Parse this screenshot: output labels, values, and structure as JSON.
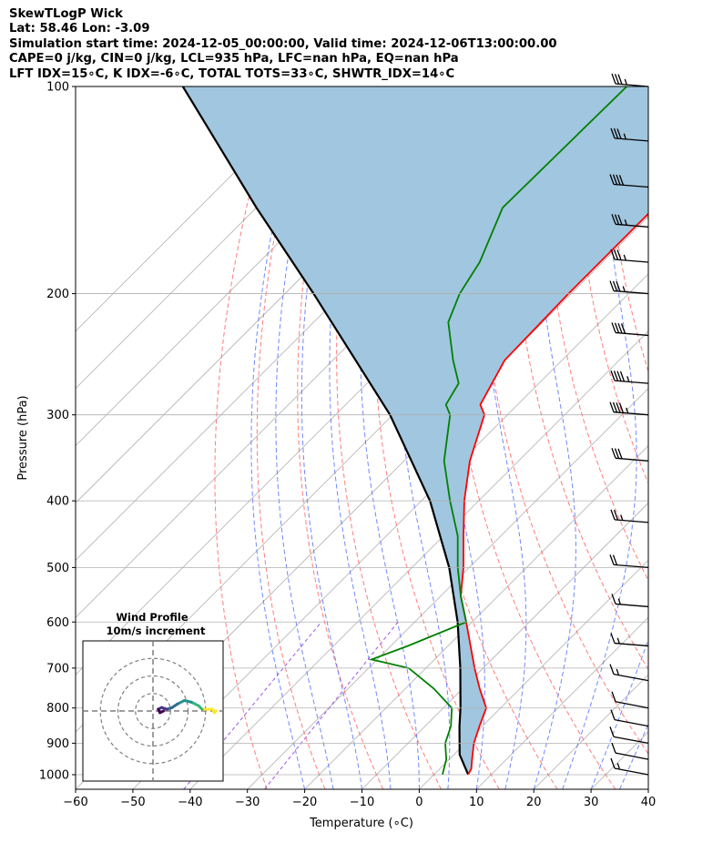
{
  "header": {
    "line1": "SkewTLogP Wick",
    "line2": "Lat: 58.46   Lon: -3.09",
    "line3": "Simulation start time: 2024-12-05_00:00:00, Valid time: 2024-12-06T13:00:00.00",
    "line4": "CAPE=0 j/kg, CIN=0 j/kg, LCL=935 hPa, LFC=nan hPa, EQ=nan hPa",
    "line5": "LFT IDX=15∘C, K IDX=-6∘C, TOTAL TOTS=33∘C, SHWTR_IDX=14∘C"
  },
  "colors": {
    "temperature": "#ff0000",
    "dewpoint": "#008000",
    "parcel": "#000000",
    "cape_fill": "#a1c6df",
    "dry_adiabat": "#ff5050",
    "moist_adiabat": "#4060ff",
    "isotherm": "#b0b0b0",
    "mixing_ratio": "#8a2be2"
  },
  "chart_data": {
    "type": "skewt",
    "xlabel": "Temperature (∘C)",
    "ylabel": "Pressure (hPa)",
    "xlim": [
      -60,
      40
    ],
    "ylim": [
      1050,
      100
    ],
    "x_ticks": [
      "−60",
      "−50",
      "−40",
      "−30",
      "−20",
      "−10",
      "0",
      "10",
      "20",
      "30",
      "40"
    ],
    "x_tick_values": [
      -60,
      -50,
      -40,
      -30,
      -20,
      -10,
      0,
      10,
      20,
      30,
      40
    ],
    "y_ticks": [
      "100",
      "200",
      "300",
      "400",
      "500",
      "600",
      "700",
      "800",
      "900",
      "1000"
    ],
    "y_tick_values": [
      100,
      200,
      300,
      400,
      500,
      600,
      700,
      800,
      900,
      1000
    ],
    "temperature": [
      {
        "p": 1000,
        "t": 6.0
      },
      {
        "p": 980,
        "t": 5.5
      },
      {
        "p": 950,
        "t": 4.0
      },
      {
        "p": 900,
        "t": 1.5
      },
      {
        "p": 850,
        "t": -0.5
      },
      {
        "p": 800,
        "t": -2.5
      },
      {
        "p": 750,
        "t": -7.0
      },
      {
        "p": 700,
        "t": -11.5
      },
      {
        "p": 600,
        "t": -21.0
      },
      {
        "p": 550,
        "t": -26.5
      },
      {
        "p": 500,
        "t": -31.0
      },
      {
        "p": 450,
        "t": -36.5
      },
      {
        "p": 400,
        "t": -42.5
      },
      {
        "p": 350,
        "t": -48.5
      },
      {
        "p": 300,
        "t": -54.0
      },
      {
        "p": 290,
        "t": -56.5
      },
      {
        "p": 250,
        "t": -60.0
      },
      {
        "p": 200,
        "t": -60.5
      },
      {
        "p": 170,
        "t": -60.5
      },
      {
        "p": 150,
        "t": -60.5
      },
      {
        "p": 130,
        "t": -60.0
      },
      {
        "p": 115,
        "t": -58.0
      },
      {
        "p": 100,
        "t": -58.0
      }
    ],
    "dewpoint": [
      {
        "p": 1000,
        "t": 1.5
      },
      {
        "p": 950,
        "t": -0.5
      },
      {
        "p": 900,
        "t": -3.5
      },
      {
        "p": 850,
        "t": -5.5
      },
      {
        "p": 800,
        "t": -8.5
      },
      {
        "p": 750,
        "t": -15.0
      },
      {
        "p": 700,
        "t": -23.0
      },
      {
        "p": 680,
        "t": -31.0
      },
      {
        "p": 650,
        "t": -27.0
      },
      {
        "p": 600,
        "t": -21.0
      },
      {
        "p": 550,
        "t": -26.5
      },
      {
        "p": 500,
        "t": -32.0
      },
      {
        "p": 450,
        "t": -37.5
      },
      {
        "p": 400,
        "t": -45.0
      },
      {
        "p": 350,
        "t": -53.0
      },
      {
        "p": 300,
        "t": -60.0
      },
      {
        "p": 290,
        "t": -62.5
      },
      {
        "p": 270,
        "t": -64.0
      },
      {
        "p": 250,
        "t": -69.0
      },
      {
        "p": 220,
        "t": -76.5
      },
      {
        "p": 200,
        "t": -79.5
      },
      {
        "p": 180,
        "t": -81.5
      },
      {
        "p": 150,
        "t": -87.0
      },
      {
        "p": 100,
        "t": -86.5
      }
    ],
    "parcel": [
      {
        "p": 1000,
        "t": 6.0
      },
      {
        "p": 935,
        "t": 1.0
      },
      {
        "p": 900,
        "t": -1.0
      },
      {
        "p": 850,
        "t": -4.0
      },
      {
        "p": 800,
        "t": -7.0
      },
      {
        "p": 700,
        "t": -14.0
      },
      {
        "p": 600,
        "t": -22.5
      },
      {
        "p": 500,
        "t": -33.5
      },
      {
        "p": 400,
        "t": -48.5
      },
      {
        "p": 300,
        "t": -70.5
      },
      {
        "p": 250,
        "t": -86.0
      },
      {
        "p": 200,
        "t": -105.0
      },
      {
        "p": 150,
        "t": -130.0
      },
      {
        "p": 100,
        "t": -164.0
      }
    ],
    "wind_barbs": [
      {
        "p": 100,
        "speed_kt": 35
      },
      {
        "p": 120,
        "speed_kt": 35
      },
      {
        "p": 140,
        "speed_kt": 40
      },
      {
        "p": 160,
        "speed_kt": 35
      },
      {
        "p": 180,
        "speed_kt": 35
      },
      {
        "p": 200,
        "speed_kt": 35
      },
      {
        "p": 230,
        "speed_kt": 40
      },
      {
        "p": 270,
        "speed_kt": 45
      },
      {
        "p": 300,
        "speed_kt": 45
      },
      {
        "p": 350,
        "speed_kt": 30
      },
      {
        "p": 430,
        "speed_kt": 25
      },
      {
        "p": 500,
        "speed_kt": 20
      },
      {
        "p": 570,
        "speed_kt": 15
      },
      {
        "p": 650,
        "speed_kt": 15
      },
      {
        "p": 730,
        "speed_kt": 15
      },
      {
        "p": 800,
        "speed_kt": 10
      },
      {
        "p": 850,
        "speed_kt": 10
      },
      {
        "p": 900,
        "speed_kt": 10
      },
      {
        "p": 950,
        "speed_kt": 10
      },
      {
        "p": 1000,
        "speed_kt": 15
      }
    ],
    "hodograph": {
      "title": "Wind Profile",
      "subtitle": "10m/s increment",
      "rings_ms": [
        10,
        20,
        30
      ],
      "range_ms": 40,
      "points": [
        {
          "u": 36,
          "v": 0
        },
        {
          "u": 35,
          "v": -1
        },
        {
          "u": 34,
          "v": 1
        },
        {
          "u": 28,
          "v": 1
        },
        {
          "u": 26,
          "v": 3
        },
        {
          "u": 22,
          "v": 5
        },
        {
          "u": 18,
          "v": 6
        },
        {
          "u": 14,
          "v": 4
        },
        {
          "u": 11,
          "v": 2
        },
        {
          "u": 8,
          "v": 1
        },
        {
          "u": 5,
          "v": 2
        },
        {
          "u": 3,
          "v": 1
        },
        {
          "u": 4,
          "v": -1
        },
        {
          "u": 6,
          "v": 0
        }
      ],
      "colors": [
        "#fde725",
        "#35b779",
        "#21918c",
        "#31688e",
        "#443983",
        "#440154"
      ]
    }
  }
}
